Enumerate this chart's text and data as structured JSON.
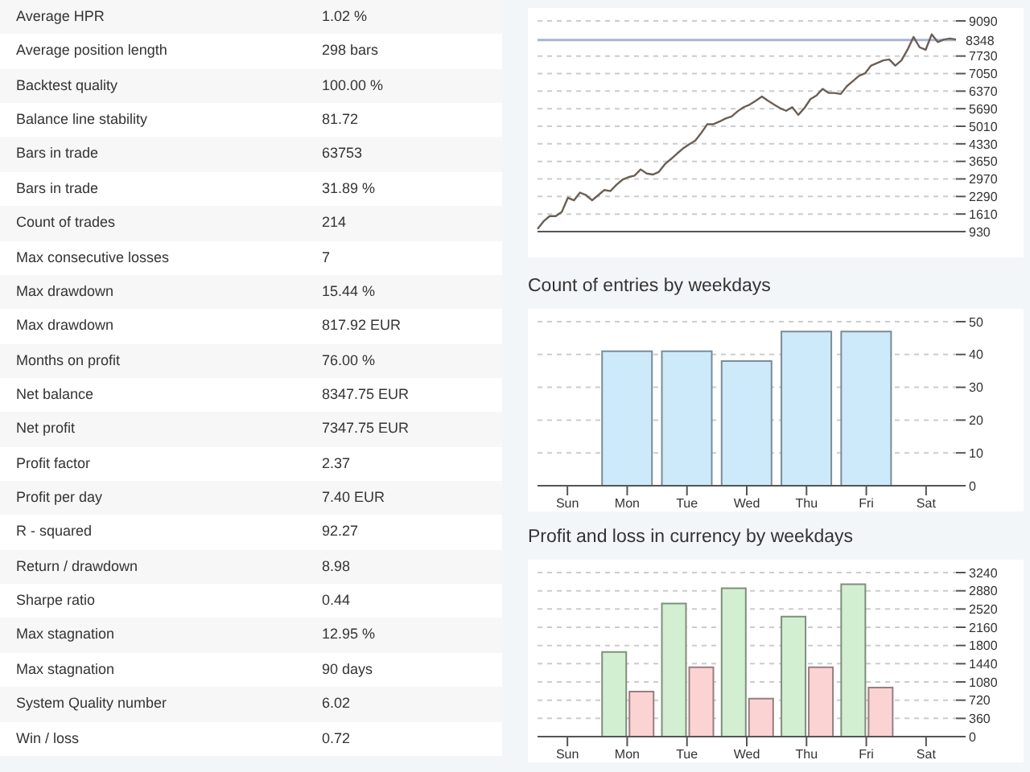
{
  "chart_data": [
    {
      "type": "other",
      "categories": [
        "Average HPR",
        "Average position length",
        "Backtest quality",
        "Balance line stability",
        "Bars in trade",
        "Bars in trade",
        "Count of trades",
        "Max consecutive losses",
        "Max drawdown",
        "Max drawdown",
        "Months on profit",
        "Net balance",
        "Net profit",
        "Profit factor",
        "Profit per day",
        "R - squared",
        "Return / drawdown",
        "Sharpe ratio",
        "Max stagnation",
        "Max stagnation",
        "System Quality number",
        "Win / loss"
      ],
      "value_labels": [
        "1.02 %",
        "298 bars",
        "100.00 %",
        "81.72",
        "63753",
        "31.89 %",
        "214",
        "7",
        "15.44 %",
        "817.92 EUR",
        "76.00 %",
        "8347.75 EUR",
        "7347.75 EUR",
        "2.37",
        "7.40 EUR",
        "92.27",
        "8.98",
        "0.44",
        "12.95 %",
        "90 days",
        "6.02",
        "0.72"
      ]
    },
    {
      "type": "line",
      "categories": [
        null,
        null,
        null,
        null,
        null,
        null,
        null,
        null,
        null,
        null,
        null,
        null,
        null,
        null,
        null,
        null,
        null,
        null,
        null,
        null,
        null,
        null,
        null,
        null,
        null,
        null,
        null,
        null,
        null,
        null,
        null,
        null,
        null,
        null,
        null,
        null,
        null,
        null,
        null,
        null,
        null,
        null,
        null,
        null,
        null,
        null,
        null,
        null,
        null,
        null,
        null,
        null,
        null,
        null,
        null,
        null,
        null,
        null,
        null,
        null,
        null,
        null,
        null,
        null,
        null,
        null,
        null,
        null,
        null,
        null
      ],
      "values": [
        1030,
        1330,
        1530,
        1530,
        1690,
        2240,
        2140,
        2440,
        2340,
        2140,
        2340,
        2540,
        2500,
        2740,
        2940,
        3040,
        3100,
        3340,
        3180,
        3140,
        3240,
        3540,
        3740,
        3950,
        4150,
        4310,
        4450,
        4750,
        5090,
        5090,
        5190,
        5310,
        5390,
        5590,
        5750,
        5850,
        6000,
        6160,
        6000,
        5850,
        5710,
        5610,
        5750,
        5450,
        5710,
        6060,
        6200,
        6460,
        6300,
        6300,
        6260,
        6560,
        6760,
        6960,
        7060,
        7360,
        7460,
        7560,
        7600,
        7360,
        7560,
        7970,
        8470,
        8070,
        7970,
        8570,
        8270,
        8370,
        8410,
        8370
      ],
      "color": "#6b5f55",
      "marker": "none",
      "ylim": [
        930,
        9090
      ],
      "yticks": [
        930,
        1610,
        2290,
        2970,
        3650,
        4330,
        5010,
        5690,
        6370,
        7050,
        7730,
        9090
      ],
      "grid": "y",
      "ref_lines": [
        {
          "axis": "y",
          "value": 8348,
          "label": "8348",
          "color": "#aab4d4"
        }
      ]
    },
    {
      "type": "bar",
      "title": "Count of entries by weekdays",
      "categories": [
        "Sun",
        "Mon",
        "Tue",
        "Wed",
        "Thu",
        "Fri",
        "Sat"
      ],
      "values": [
        null,
        41,
        41,
        38,
        47,
        47,
        null
      ],
      "color": "#cdeafb",
      "ylim": [
        0,
        50
      ],
      "yticks": [
        0,
        10,
        20,
        30,
        40,
        50
      ],
      "grid": "y"
    },
    {
      "type": "bar",
      "title": "Profit and loss in currency by weekdays",
      "categories": [
        "Sun",
        "Mon",
        "Tue",
        "Wed",
        "Thu",
        "Fri",
        "Sat"
      ],
      "series": [
        {
          "color": "#d3efd1",
          "values": [
            null,
            1670,
            2630,
            2930,
            2370,
            3010,
            null
          ]
        },
        {
          "color": "#fcd3d3",
          "values": [
            null,
            890,
            1370,
            750,
            1370,
            970,
            null
          ]
        }
      ],
      "ylim": [
        0,
        3240
      ],
      "yticks": [
        0,
        360,
        720,
        1080,
        1440,
        1800,
        2160,
        2520,
        2880,
        3240
      ],
      "grid": "y"
    }
  ]
}
